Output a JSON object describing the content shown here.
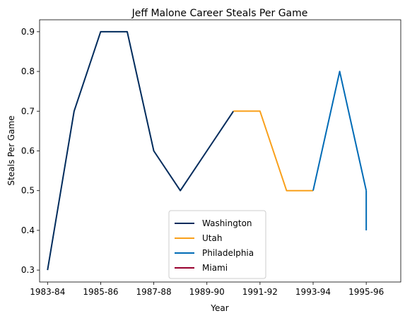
{
  "chart_data": {
    "type": "line",
    "title": "Jeff Malone Career Steals Per Game",
    "xlabel": "Year",
    "ylabel": "Steals Per Game",
    "x_ticks": [
      "1983-84",
      "1985-86",
      "1987-88",
      "1989-90",
      "1991-92",
      "1993-94",
      "1995-96"
    ],
    "y_ticks": [
      "0.3",
      "0.4",
      "0.5",
      "0.6",
      "0.7",
      "0.8",
      "0.9"
    ],
    "x_range": [
      1982.7,
      1996.3
    ],
    "y_range": [
      0.27,
      0.93
    ],
    "legend_position": "lower center",
    "series": [
      {
        "name": "Washington",
        "color": "#002B5C",
        "points": [
          [
            1983,
            0.3
          ],
          [
            1984,
            0.7
          ],
          [
            1985,
            0.9
          ],
          [
            1986,
            0.9
          ],
          [
            1987,
            0.6
          ],
          [
            1988,
            0.5
          ],
          [
            1989,
            0.6
          ],
          [
            1990,
            0.7
          ]
        ]
      },
      {
        "name": "Utah",
        "color": "#F9A01B",
        "points": [
          [
            1990,
            0.7
          ],
          [
            1991,
            0.7
          ],
          [
            1992,
            0.5
          ],
          [
            1993,
            0.5
          ]
        ]
      },
      {
        "name": "Philadelphia",
        "color": "#006BB6",
        "points": [
          [
            1993,
            0.5
          ],
          [
            1994,
            0.8
          ],
          [
            1995,
            0.5
          ]
        ]
      },
      {
        "name": "Miami",
        "color": "#98002E",
        "points": [
          [
            1995,
            0.4
          ]
        ]
      }
    ],
    "connectors": [
      {
        "color": "#006BB6",
        "points": [
          [
            1995,
            0.5
          ],
          [
            1995,
            0.4
          ]
        ]
      }
    ]
  }
}
